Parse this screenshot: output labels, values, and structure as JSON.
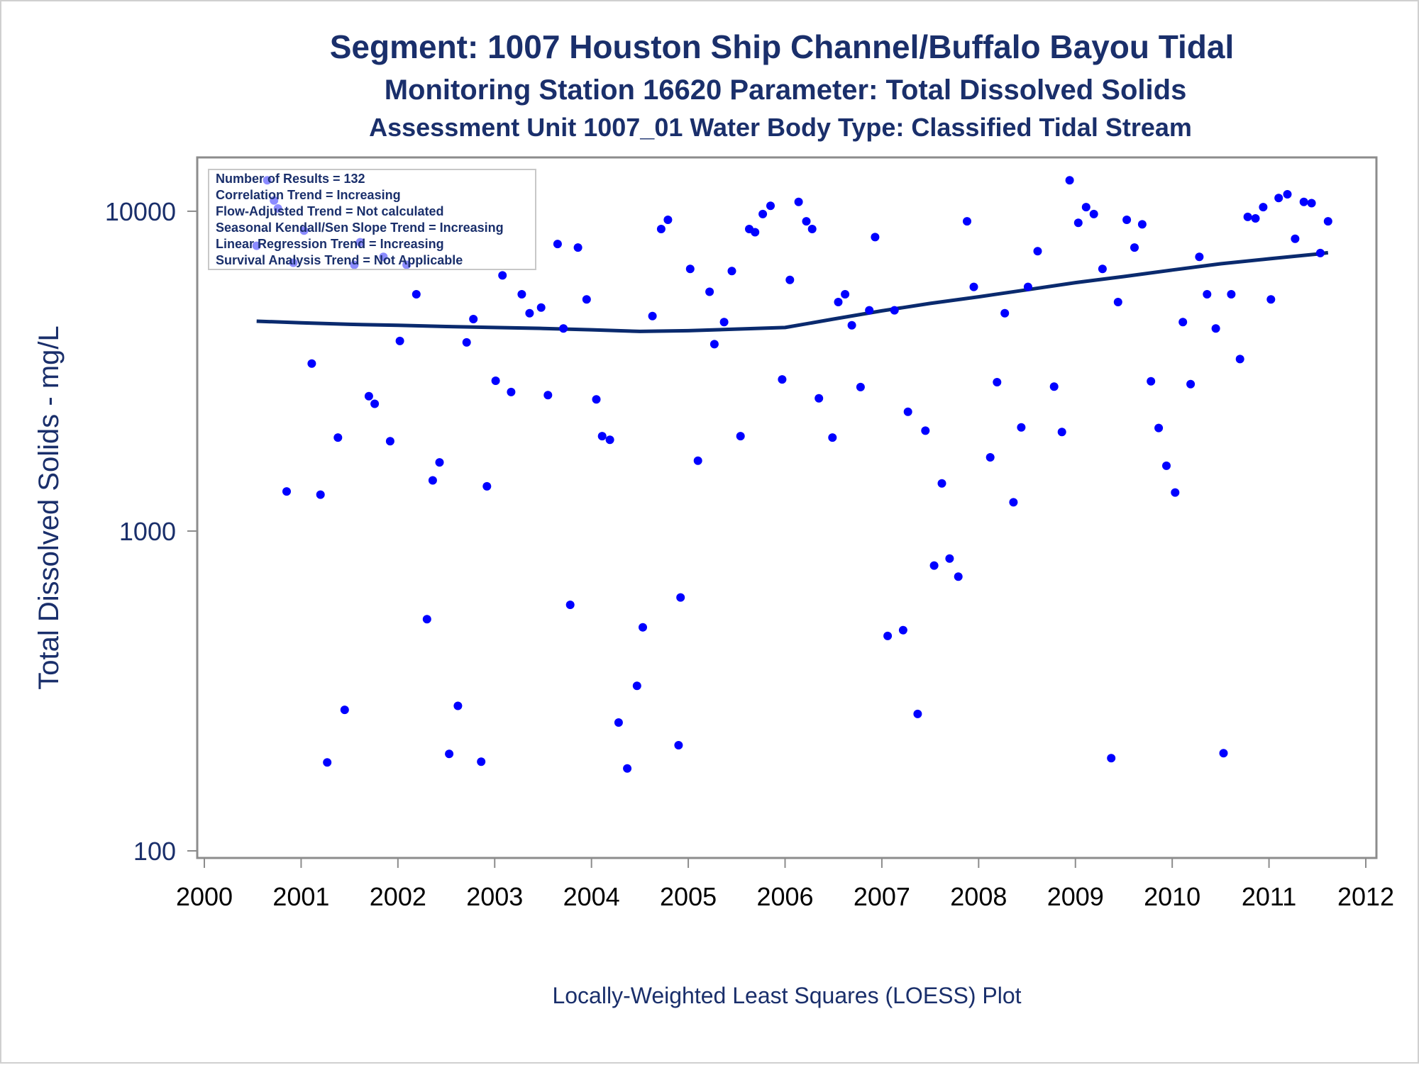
{
  "titles": [
    "Segment: 1007  Houston Ship Channel/Buffalo Bayou Tidal",
    "Monitoring Station 16620 Parameter: Total Dissolved Solids",
    "Assessment Unit 1007_01   Water Body Type: Classified Tidal Stream"
  ],
  "stats_box": [
    "Number of Results = 132",
    "Correlation Trend = Increasing",
    "Flow-Adjusted Trend = Not calculated",
    "Seasonal Kendall/Sen Slope Trend = Increasing",
    "Linear Regression Trend = Increasing",
    "Survival Analysis Trend = Not Applicable"
  ],
  "footnote": "Locally-Weighted Least Squares (LOESS) Plot",
  "colors": {
    "title": "#1a2f6b",
    "points": "#0000ff",
    "loess": "#0a2a6e",
    "frame": "#8c8c8c"
  },
  "chart_data": {
    "type": "scatter",
    "title": "",
    "xlabel": "",
    "ylabel": "Total Dissolved Solids - mg/L",
    "y_scale": "log",
    "xlim": [
      2000,
      2012
    ],
    "ylim": [
      100,
      14000
    ],
    "x_ticks": [
      "2000",
      "2001",
      "2002",
      "2003",
      "2004",
      "2005",
      "2006",
      "2007",
      "2008",
      "2009",
      "2010",
      "2011",
      "2012"
    ],
    "y_ticks": [
      "100",
      "1000",
      "10000"
    ],
    "y_tick_values": [
      100,
      1000,
      10000
    ],
    "grid": false,
    "legend": "none",
    "series": [
      {
        "kind": "points",
        "x": [
          2000.54,
          2000.65,
          2000.72,
          2000.76,
          2000.85,
          2000.92,
          2001.03,
          2001.11,
          2001.2,
          2001.27,
          2001.38,
          2001.45,
          2001.55,
          2001.61,
          2001.7,
          2001.76,
          2001.85,
          2001.92,
          2002.02,
          2002.09,
          2002.19,
          2002.3,
          2002.36,
          2002.43,
          2002.53,
          2002.62,
          2002.71,
          2002.78,
          2002.86,
          2002.92,
          2003.01,
          2003.08,
          2003.17,
          2003.28,
          2003.36,
          2003.48,
          2003.55,
          2003.65,
          2003.71,
          2003.78,
          2003.86,
          2003.95,
          2004.05,
          2004.11,
          2004.19,
          2004.28,
          2004.37,
          2004.47,
          2004.53,
          2004.63,
          2004.72,
          2004.79,
          2004.9,
          2004.92,
          2005.02,
          2005.1,
          2005.22,
          2005.27,
          2005.37,
          2005.45,
          2005.54,
          2005.63,
          2005.69,
          2005.77,
          2005.85,
          2005.97,
          2006.05,
          2006.14,
          2006.22,
          2006.28,
          2006.35,
          2006.49,
          2006.55,
          2006.62,
          2006.69,
          2006.78,
          2006.87,
          2006.93,
          2007.06,
          2007.13,
          2007.22,
          2007.27,
          2007.37,
          2007.45,
          2007.54,
          2007.62,
          2007.7,
          2007.79,
          2007.88,
          2007.95,
          2008.12,
          2008.19,
          2008.27,
          2008.36,
          2008.44,
          2008.51,
          2008.61,
          2008.78,
          2008.86,
          2008.94,
          2009.03,
          2009.11,
          2009.19,
          2009.28,
          2009.37,
          2009.44,
          2009.53,
          2009.61,
          2009.69,
          2009.78,
          2009.86,
          2009.94,
          2010.03,
          2010.11,
          2010.19,
          2010.28,
          2010.36,
          2010.45,
          2010.53,
          2010.61,
          2010.7,
          2010.78,
          2010.86,
          2010.94,
          2011.02,
          2011.1,
          2011.19,
          2011.27,
          2011.36,
          2011.44,
          2011.53,
          2011.61
        ],
        "y": [
          7800,
          12500,
          10800,
          10200,
          1330,
          6900,
          8700,
          3340,
          1300,
          189,
          1960,
          276,
          6800,
          8000,
          2640,
          2500,
          7200,
          1910,
          3930,
          6800,
          5500,
          530,
          1440,
          1640,
          201,
          284,
          3890,
          4600,
          190,
          1380,
          2950,
          6300,
          2720,
          5500,
          4800,
          5000,
          2660,
          7900,
          4300,
          588,
          7700,
          5300,
          2580,
          1980,
          1930,
          252,
          181,
          328,
          500,
          4700,
          8800,
          9400,
          214,
          620,
          6600,
          1660,
          5600,
          3840,
          4500,
          6500,
          1980,
          8800,
          8600,
          9800,
          10400,
          2980,
          6100,
          10700,
          9300,
          8800,
          2600,
          1960,
          5200,
          5500,
          4400,
          2820,
          4900,
          8300,
          470,
          4900,
          490,
          2360,
          268,
          2060,
          780,
          1410,
          820,
          720,
          9300,
          5800,
          1700,
          2920,
          4800,
          1230,
          2110,
          5800,
          7500,
          2830,
          2040,
          12500,
          9200,
          10300,
          9800,
          6600,
          195,
          5200,
          9400,
          7700,
          9100,
          2940,
          2100,
          1600,
          1320,
          4500,
          2880,
          7200,
          5500,
          4300,
          202,
          5500,
          3450,
          9600,
          9500,
          10300,
          5300,
          11000,
          11300,
          8200,
          10700,
          10600,
          7400,
          9300
        ]
      },
      {
        "kind": "loess",
        "x": [
          2000.54,
          2001.0,
          2001.5,
          2002.0,
          2002.5,
          2003.0,
          2003.5,
          2004.0,
          2004.5,
          2005.0,
          2005.5,
          2006.0,
          2006.5,
          2007.0,
          2007.5,
          2008.0,
          2008.5,
          2009.0,
          2009.5,
          2010.0,
          2010.5,
          2011.0,
          2011.5,
          2011.61
        ],
        "y": [
          4530,
          4480,
          4430,
          4400,
          4360,
          4330,
          4300,
          4260,
          4210,
          4230,
          4280,
          4330,
          4600,
          4880,
          5150,
          5400,
          5680,
          5980,
          6250,
          6550,
          6850,
          7100,
          7350,
          7420
        ]
      }
    ]
  }
}
